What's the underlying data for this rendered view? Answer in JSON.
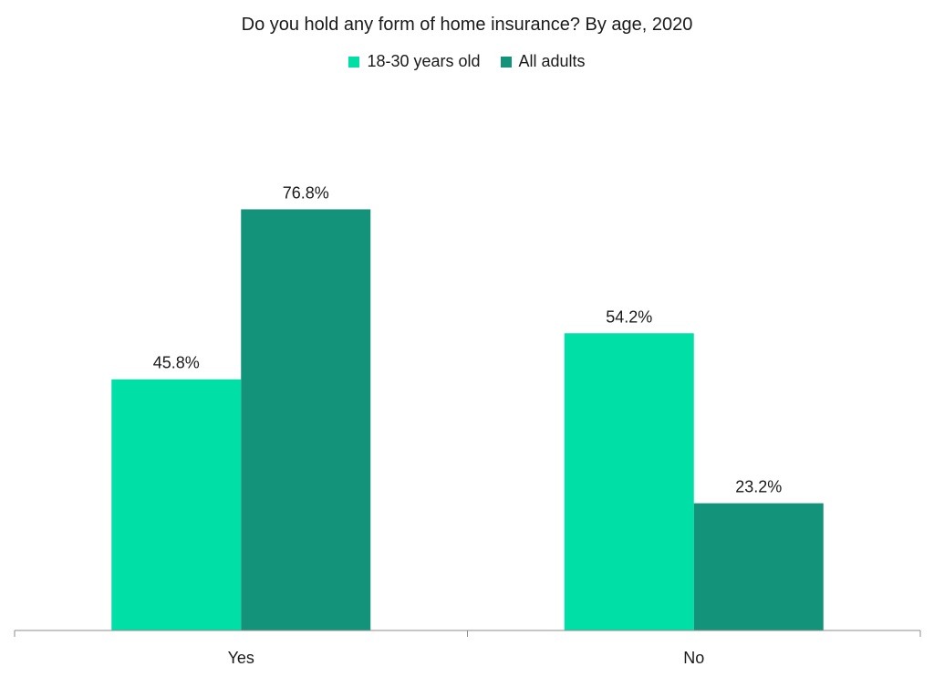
{
  "chart_data": {
    "type": "bar",
    "title": "Do you hold any form of home insurance? By age, 2020",
    "categories": [
      "Yes",
      "No"
    ],
    "series": [
      {
        "name": "18-30 years old",
        "values": [
          45.8,
          54.2
        ],
        "labels": [
          "45.8%",
          "54.2%"
        ],
        "color": "#00E0A6"
      },
      {
        "name": "All adults",
        "values": [
          76.8,
          23.2
        ],
        "labels": [
          "76.8%",
          "23.2%"
        ],
        "color": "#13947A"
      }
    ],
    "ylim": [
      0,
      100
    ],
    "grid": false,
    "legend_position": "top"
  }
}
